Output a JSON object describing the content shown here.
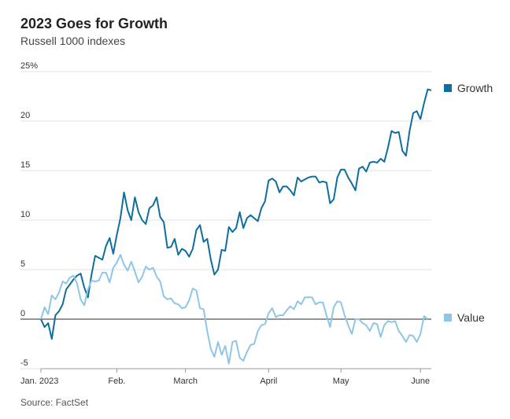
{
  "title": "2023 Goes for Growth",
  "subtitle": "Russell 1000 indexes",
  "source": "Source: FactSet",
  "chart_data": {
    "type": "line",
    "ylim": [
      -5,
      25
    ],
    "yticks": [
      {
        "value": 25,
        "label": "25%"
      },
      {
        "value": 20,
        "label": "20"
      },
      {
        "value": 15,
        "label": "15"
      },
      {
        "value": 10,
        "label": "10"
      },
      {
        "value": 5,
        "label": "5"
      },
      {
        "value": 0,
        "label": "0"
      },
      {
        "value": -5,
        "label": "-5"
      }
    ],
    "xticks": [
      {
        "index": 0,
        "label": "Jan. 2023"
      },
      {
        "index": 21,
        "label": "Feb."
      },
      {
        "index": 40,
        "label": "March"
      },
      {
        "index": 63,
        "label": "April"
      },
      {
        "index": 83,
        "label": "May"
      },
      {
        "index": 105,
        "label": "June"
      }
    ],
    "grid": true,
    "legend": "right",
    "series": [
      {
        "name": "Growth",
        "color": "#0e6e9e",
        "values": [
          0,
          -0.8,
          -0.4,
          -2.0,
          0.4,
          0.8,
          1.5,
          3.0,
          3.5,
          4.0,
          4.4,
          4.6,
          3.2,
          2.2,
          4.5,
          6.4,
          6.2,
          6.0,
          7.4,
          8.2,
          6.6,
          8.5,
          10.2,
          12.8,
          11.0,
          10.0,
          12.3,
          10.8,
          10.0,
          9.6,
          11.2,
          11.5,
          12.3,
          10.3,
          9.8,
          7.2,
          7.3,
          8.1,
          6.5,
          7.1,
          6.9,
          6.3,
          7.1,
          9.0,
          9.5,
          7.8,
          8.1,
          6.0,
          4.5,
          5.0,
          7.0,
          6.9,
          9.3,
          8.8,
          9.2,
          10.8,
          9.2,
          10.2,
          10.5,
          10.2,
          9.9,
          11.2,
          11.9,
          14.0,
          14.2,
          13.9,
          12.8,
          13.4,
          13.4,
          13.0,
          12.5,
          14.3,
          13.9,
          14.1,
          14.3,
          14.4,
          14.4,
          13.8,
          13.9,
          13.8,
          11.7,
          12.1,
          14.3,
          15.1,
          15.1,
          14.3,
          13.7,
          13.0,
          15.2,
          15.4,
          14.9,
          15.8,
          15.9,
          15.8,
          16.2,
          15.9,
          17.3,
          19.0,
          18.8,
          18.9,
          17.0,
          16.5,
          19.0,
          20.8,
          21.0,
          20.2,
          21.8,
          23.2,
          23.1
        ],
        "end_label": "Growth"
      },
      {
        "name": "Value",
        "color": "#8ec7e6",
        "values": [
          0,
          1.2,
          0.5,
          2.4,
          2.0,
          2.7,
          3.8,
          3.6,
          4.2,
          4.4,
          3.6,
          2.0,
          1.4,
          3.0,
          3.9,
          3.8,
          3.9,
          4.7,
          4.7,
          3.7,
          5.2,
          5.7,
          6.5,
          5.5,
          4.9,
          5.8,
          4.8,
          3.7,
          4.3,
          5.3,
          5.0,
          5.2,
          4.3,
          3.8,
          2.3,
          2.0,
          2.1,
          1.6,
          1.5,
          1.1,
          1.2,
          1.9,
          3.1,
          2.9,
          1.1,
          1.0,
          -1.2,
          -3.0,
          -3.8,
          -2.3,
          -3.6,
          -2.7,
          -4.5,
          -2.3,
          -2.2,
          -3.9,
          -4.2,
          -3.3,
          -2.6,
          -2.5,
          -1.2,
          -0.6,
          -0.5,
          0.6,
          1.1,
          0.2,
          0.4,
          0.4,
          0.9,
          1.3,
          1.0,
          1.8,
          1.5,
          2.2,
          2.2,
          2.2,
          1.5,
          1.7,
          1.7,
          0.4,
          -0.8,
          1.2,
          1.8,
          1.7,
          0.4,
          -0.6,
          -1.5,
          0.0,
          0.0,
          -0.4,
          -0.6,
          -1.2,
          -0.4,
          -0.5,
          -1.8,
          -0.6,
          -0.2,
          -0.3,
          -0.2,
          -1.2,
          -1.7,
          -2.3,
          -1.6,
          -1.7,
          -2.3,
          -1.5,
          0.3,
          0.0
        ],
        "end_label": "Value"
      }
    ]
  }
}
